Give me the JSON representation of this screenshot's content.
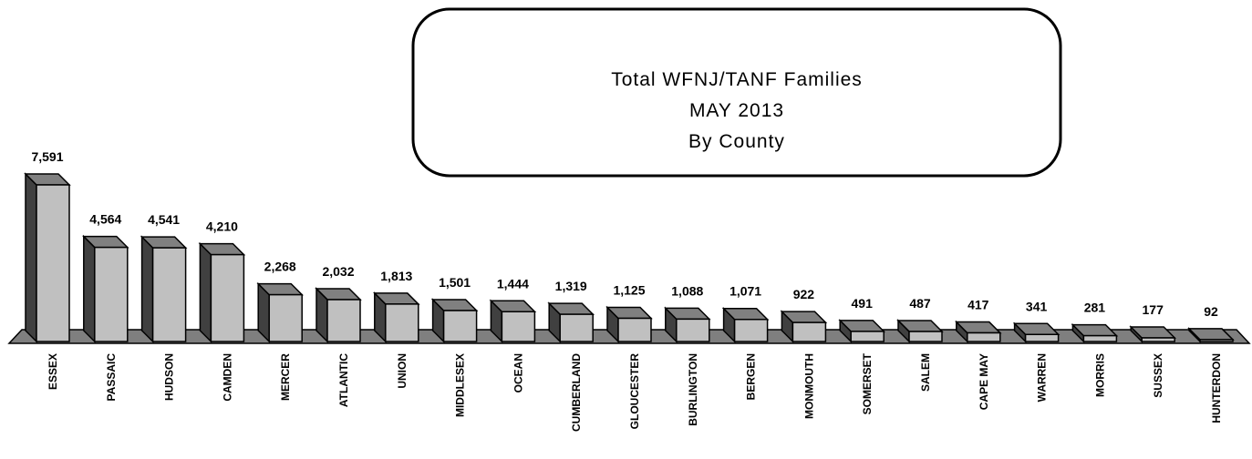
{
  "chart_data": {
    "type": "bar3d",
    "title": [
      "Total WFNJ/TANF Families",
      "MAY 2013",
      "By County"
    ],
    "categories": [
      "ESSEX",
      "PASSAIC",
      "HUDSON",
      "CAMDEN",
      "MERCER",
      "ATLANTIC",
      "UNION",
      "MIDDLESEX",
      "OCEAN",
      "CUMBERLAND",
      "GLOUCESTER",
      "BURLINGTON",
      "BERGEN",
      "MONMOUTH",
      "SOMERSET",
      "SALEM",
      "CAPE MAY",
      "WARREN",
      "MORRIS",
      "SUSSEX",
      "HUNTERDON"
    ],
    "values": [
      7591,
      4564,
      4541,
      4210,
      2268,
      2032,
      1813,
      1501,
      1444,
      1319,
      1125,
      1088,
      1071,
      922,
      491,
      487,
      417,
      341,
      281,
      177,
      92
    ],
    "value_labels": [
      "7,591",
      "4,564",
      "4,541",
      "4,210",
      "2,268",
      "2,032",
      "1,813",
      "1,501",
      "1,444",
      "1,319",
      "1,125",
      "1,088",
      "1,071",
      "922",
      "491",
      "487",
      "417",
      "341",
      "281",
      "177",
      "92"
    ],
    "color": "#c0c0c0"
  }
}
